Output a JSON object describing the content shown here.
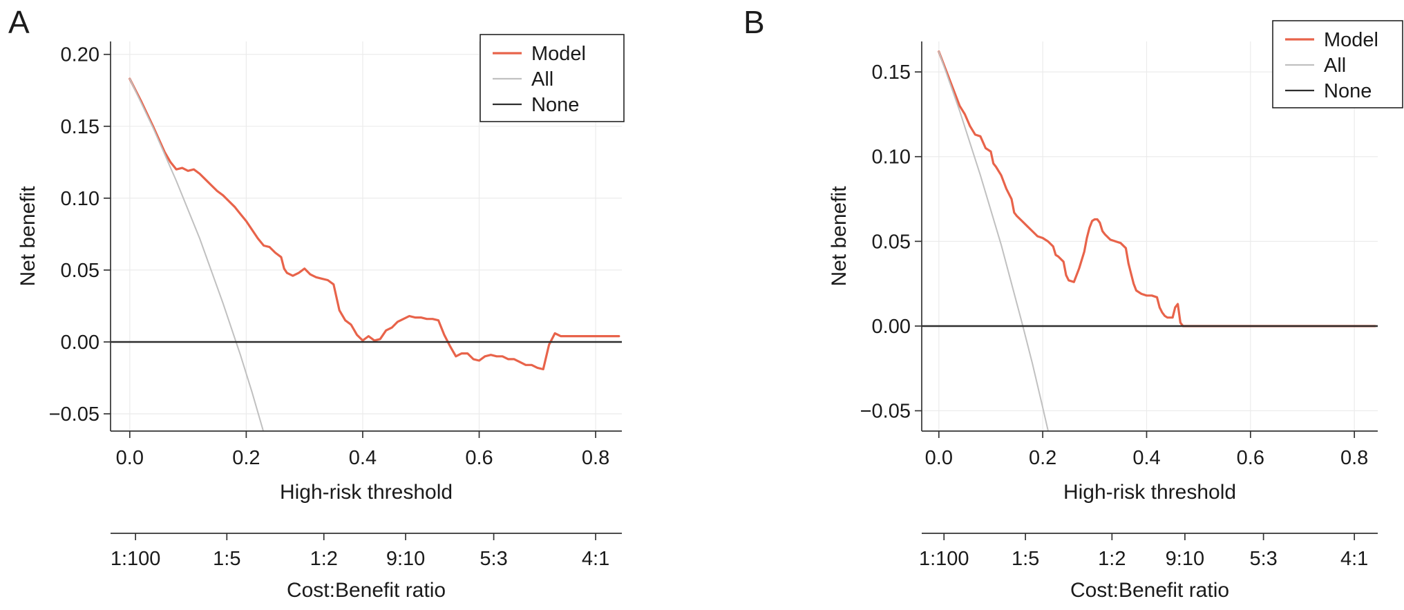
{
  "figure": {
    "background": "#ffffff",
    "panel_labels": [
      "A",
      "B"
    ]
  },
  "chart_data": [
    {
      "type": "line",
      "panel_label": "A",
      "xlabel": "High-risk threshold",
      "ylabel": "Net benefit",
      "xlim": [
        -0.033,
        0.845
      ],
      "ylim": [
        -0.062,
        0.209
      ],
      "grid": true,
      "x_tick_values": [
        0.0,
        0.2,
        0.4,
        0.6,
        0.8
      ],
      "x_tick_labels": [
        "0.0",
        "0.2",
        "0.4",
        "0.6",
        "0.8"
      ],
      "y_tick_values": [
        -0.05,
        0.0,
        0.05,
        0.1,
        0.15,
        0.2
      ],
      "y_tick_labels": [
        "−0.05",
        "0.00",
        "0.05",
        "0.10",
        "0.15",
        "0.20"
      ],
      "legend": {
        "position": "top-right",
        "entries": [
          {
            "label": "Model",
            "color": "#e8634a"
          },
          {
            "label": "All",
            "color": "#c0c0c0"
          },
          {
            "label": "None",
            "color": "#2d2d2d"
          }
        ]
      },
      "cost_axis": {
        "label": "Cost:Benefit ratio",
        "tick_values": [
          0.0099,
          0.1667,
          0.3333,
          0.4737,
          0.625,
          0.8
        ],
        "tick_labels": [
          "1:100",
          "1:5",
          "1:2",
          "9:10",
          "5:3",
          "4:1"
        ]
      },
      "series": [
        {
          "name": "Model",
          "color": "#e8634a",
          "stroke_width": 3.2,
          "points": [
            [
              0,
              0.183
            ],
            [
              0.02,
              0.167
            ],
            [
              0.04,
              0.15
            ],
            [
              0.06,
              0.132
            ],
            [
              0.07,
              0.125
            ],
            [
              0.08,
              0.12
            ],
            [
              0.09,
              0.121
            ],
            [
              0.1,
              0.119
            ],
            [
              0.11,
              0.12
            ],
            [
              0.12,
              0.117
            ],
            [
              0.13,
              0.113
            ],
            [
              0.14,
              0.109
            ],
            [
              0.15,
              0.105
            ],
            [
              0.16,
              0.102
            ],
            [
              0.17,
              0.098
            ],
            [
              0.18,
              0.094
            ],
            [
              0.19,
              0.089
            ],
            [
              0.2,
              0.084
            ],
            [
              0.21,
              0.078
            ],
            [
              0.22,
              0.072
            ],
            [
              0.23,
              0.067
            ],
            [
              0.24,
              0.066
            ],
            [
              0.25,
              0.062
            ],
            [
              0.26,
              0.059
            ],
            [
              0.265,
              0.051
            ],
            [
              0.27,
              0.048
            ],
            [
              0.28,
              0.046
            ],
            [
              0.29,
              0.048
            ],
            [
              0.3,
              0.051
            ],
            [
              0.31,
              0.047
            ],
            [
              0.32,
              0.045
            ],
            [
              0.33,
              0.044
            ],
            [
              0.34,
              0.043
            ],
            [
              0.35,
              0.04
            ],
            [
              0.36,
              0.022
            ],
            [
              0.37,
              0.015
            ],
            [
              0.38,
              0.012
            ],
            [
              0.39,
              0.005
            ],
            [
              0.4,
              0.001
            ],
            [
              0.41,
              0.004
            ],
            [
              0.42,
              0.001
            ],
            [
              0.43,
              0.002
            ],
            [
              0.44,
              0.008
            ],
            [
              0.45,
              0.01
            ],
            [
              0.46,
              0.014
            ],
            [
              0.47,
              0.016
            ],
            [
              0.48,
              0.018
            ],
            [
              0.49,
              0.017
            ],
            [
              0.5,
              0.017
            ],
            [
              0.51,
              0.016
            ],
            [
              0.52,
              0.016
            ],
            [
              0.53,
              0.015
            ],
            [
              0.54,
              0.005
            ],
            [
              0.55,
              -0.003
            ],
            [
              0.56,
              -0.01
            ],
            [
              0.57,
              -0.008
            ],
            [
              0.58,
              -0.008
            ],
            [
              0.59,
              -0.012
            ],
            [
              0.6,
              -0.013
            ],
            [
              0.61,
              -0.01
            ],
            [
              0.62,
              -0.009
            ],
            [
              0.63,
              -0.01
            ],
            [
              0.64,
              -0.01
            ],
            [
              0.65,
              -0.012
            ],
            [
              0.66,
              -0.012
            ],
            [
              0.67,
              -0.014
            ],
            [
              0.68,
              -0.016
            ],
            [
              0.69,
              -0.016
            ],
            [
              0.7,
              -0.018
            ],
            [
              0.71,
              -0.019
            ],
            [
              0.72,
              -0.002
            ],
            [
              0.73,
              0.006
            ],
            [
              0.74,
              0.004
            ],
            [
              0.76,
              0.004
            ],
            [
              0.8,
              0.004
            ],
            [
              0.84,
              0.004
            ]
          ]
        },
        {
          "name": "All",
          "color": "#c0c0c0",
          "stroke_width": 2,
          "points": [
            [
              0,
              0.183
            ],
            [
              0.04,
              0.149
            ],
            [
              0.08,
              0.112
            ],
            [
              0.12,
              0.072
            ],
            [
              0.16,
              0.027
            ],
            [
              0.19,
              -0.009
            ],
            [
              0.21,
              -0.035
            ],
            [
              0.235,
              -0.07
            ]
          ]
        },
        {
          "name": "None",
          "color": "#2d2d2d",
          "stroke_width": 2.4,
          "points": [
            [
              -0.033,
              0
            ],
            [
              0.845,
              0
            ]
          ]
        }
      ]
    },
    {
      "type": "line",
      "panel_label": "B",
      "xlabel": "High-risk threshold",
      "ylabel": "Net benefit",
      "xlim": [
        -0.033,
        0.845
      ],
      "ylim": [
        -0.062,
        0.168
      ],
      "grid": true,
      "x_tick_values": [
        0.0,
        0.2,
        0.4,
        0.6,
        0.8
      ],
      "x_tick_labels": [
        "0.0",
        "0.2",
        "0.4",
        "0.6",
        "0.8"
      ],
      "y_tick_values": [
        -0.05,
        0.0,
        0.05,
        0.1,
        0.15
      ],
      "y_tick_labels": [
        "−0.05",
        "0.00",
        "0.05",
        "0.10",
        "0.15"
      ],
      "legend": {
        "position": "top-right",
        "entries": [
          {
            "label": "Model",
            "color": "#e8634a"
          },
          {
            "label": "All",
            "color": "#c0c0c0"
          },
          {
            "label": "None",
            "color": "#2d2d2d"
          }
        ]
      },
      "cost_axis": {
        "label": "Cost:Benefit ratio",
        "tick_values": [
          0.0099,
          0.1667,
          0.3333,
          0.4737,
          0.625,
          0.8
        ],
        "tick_labels": [
          "1:100",
          "1:5",
          "1:2",
          "9:10",
          "5:3",
          "4:1"
        ]
      },
      "series": [
        {
          "name": "Model",
          "color": "#e8634a",
          "stroke_width": 3.2,
          "points": [
            [
              0,
              0.162
            ],
            [
              0.02,
              0.146
            ],
            [
              0.04,
              0.13
            ],
            [
              0.05,
              0.125
            ],
            [
              0.06,
              0.118
            ],
            [
              0.07,
              0.113
            ],
            [
              0.08,
              0.112
            ],
            [
              0.09,
              0.105
            ],
            [
              0.1,
              0.103
            ],
            [
              0.105,
              0.096
            ],
            [
              0.11,
              0.094
            ],
            [
              0.12,
              0.089
            ],
            [
              0.13,
              0.081
            ],
            [
              0.14,
              0.075
            ],
            [
              0.145,
              0.067
            ],
            [
              0.15,
              0.065
            ],
            [
              0.16,
              0.062
            ],
            [
              0.17,
              0.059
            ],
            [
              0.18,
              0.056
            ],
            [
              0.19,
              0.053
            ],
            [
              0.2,
              0.052
            ],
            [
              0.21,
              0.05
            ],
            [
              0.22,
              0.047
            ],
            [
              0.225,
              0.042
            ],
            [
              0.23,
              0.041
            ],
            [
              0.24,
              0.038
            ],
            [
              0.245,
              0.03
            ],
            [
              0.25,
              0.027
            ],
            [
              0.26,
              0.026
            ],
            [
              0.27,
              0.034
            ],
            [
              0.28,
              0.044
            ],
            [
              0.285,
              0.052
            ],
            [
              0.29,
              0.058
            ],
            [
              0.295,
              0.062
            ],
            [
              0.3,
              0.063
            ],
            [
              0.305,
              0.063
            ],
            [
              0.31,
              0.061
            ],
            [
              0.315,
              0.056
            ],
            [
              0.32,
              0.054
            ],
            [
              0.33,
              0.051
            ],
            [
              0.34,
              0.05
            ],
            [
              0.35,
              0.049
            ],
            [
              0.36,
              0.046
            ],
            [
              0.365,
              0.037
            ],
            [
              0.37,
              0.031
            ],
            [
              0.375,
              0.025
            ],
            [
              0.38,
              0.021
            ],
            [
              0.39,
              0.019
            ],
            [
              0.4,
              0.018
            ],
            [
              0.41,
              0.018
            ],
            [
              0.42,
              0.017
            ],
            [
              0.425,
              0.011
            ],
            [
              0.43,
              0.008
            ],
            [
              0.435,
              0.006
            ],
            [
              0.44,
              0.005
            ],
            [
              0.45,
              0.005
            ],
            [
              0.455,
              0.011
            ],
            [
              0.46,
              0.013
            ],
            [
              0.465,
              0.002
            ],
            [
              0.47,
              0.0
            ],
            [
              0.5,
              0.0
            ],
            [
              0.55,
              0.0
            ],
            [
              0.6,
              0.0
            ],
            [
              0.7,
              0.0
            ],
            [
              0.84,
              0.0
            ]
          ]
        },
        {
          "name": "All",
          "color": "#c0c0c0",
          "stroke_width": 2,
          "points": [
            [
              0,
              0.162
            ],
            [
              0.04,
              0.127
            ],
            [
              0.08,
              0.089
            ],
            [
              0.12,
              0.048
            ],
            [
              0.16,
              0.002
            ],
            [
              0.18,
              -0.022
            ],
            [
              0.2,
              -0.048
            ],
            [
              0.215,
              -0.068
            ]
          ]
        },
        {
          "name": "None",
          "color": "#2d2d2d",
          "stroke_width": 2.4,
          "points": [
            [
              -0.033,
              0
            ],
            [
              0.845,
              0
            ]
          ]
        }
      ]
    }
  ]
}
